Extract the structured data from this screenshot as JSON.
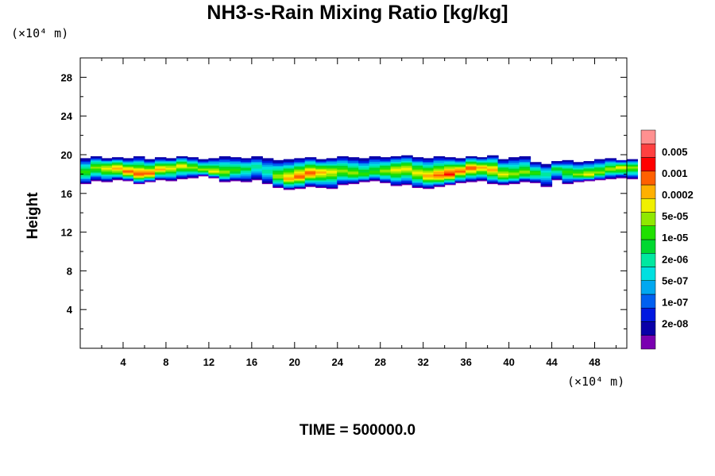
{
  "chart_data": {
    "type": "heatmap",
    "title": "NH3-s-Rain Mixing Ratio [kg/kg]",
    "ylabel": "Height",
    "xlabel": "",
    "x_unit": "(×10⁴ m)",
    "y_unit": "(×10⁴ m)",
    "xlim": [
      0,
      51
    ],
    "ylim": [
      0,
      30
    ],
    "x_ticks": [
      4,
      8,
      12,
      16,
      20,
      24,
      28,
      32,
      36,
      40,
      44,
      48
    ],
    "y_ticks": [
      4,
      8,
      12,
      16,
      20,
      24,
      28
    ],
    "grid": false,
    "colorbar": {
      "labels": [
        "0.005",
        "0.001",
        "0.0002",
        "5e-05",
        "1e-05",
        "2e-06",
        "5e-07",
        "1e-07",
        "2e-08"
      ],
      "colors": [
        "#7a00b0",
        "#0a00a8",
        "#0018e0",
        "#0060f0",
        "#00a8f0",
        "#00e0e0",
        "#00e8a0",
        "#00d830",
        "#20e000",
        "#90e800",
        "#f0f000",
        "#ffb000",
        "#ff6000",
        "#ff0000",
        "#ff4040",
        "#ff9090"
      ]
    },
    "field": {
      "base_height": [
        17.0,
        17.3,
        17.2,
        17.4,
        17.3,
        17.0,
        17.2,
        17.4,
        17.3,
        17.5,
        17.6,
        17.8,
        17.6,
        17.2,
        17.3,
        17.2,
        17.4,
        17.0,
        16.6,
        16.4,
        16.5,
        16.7,
        16.6,
        16.5,
        16.9,
        17.0,
        17.2,
        17.3,
        17.1,
        16.8,
        16.9,
        16.6,
        16.5,
        16.7,
        16.9,
        17.1,
        17.2,
        17.3,
        17.0,
        16.9,
        17.0,
        17.2,
        17.1,
        16.7,
        17.4,
        17.0,
        17.2,
        17.3,
        17.4,
        17.5,
        17.6,
        17.5
      ],
      "top_height": [
        19.6,
        19.8,
        19.6,
        19.7,
        19.6,
        19.8,
        19.5,
        19.7,
        19.6,
        19.8,
        19.7,
        19.5,
        19.6,
        19.8,
        19.7,
        19.6,
        19.8,
        19.6,
        19.4,
        19.5,
        19.6,
        19.7,
        19.5,
        19.6,
        19.8,
        19.7,
        19.6,
        19.8,
        19.7,
        19.8,
        19.9,
        19.7,
        19.6,
        19.8,
        19.7,
        19.6,
        19.8,
        19.7,
        19.9,
        19.5,
        19.7,
        19.8,
        19.2,
        19.0,
        19.3,
        19.4,
        19.2,
        19.3,
        19.5,
        19.6,
        19.4,
        19.5
      ],
      "peak_level": [
        8,
        9,
        10,
        11,
        12,
        12,
        12,
        11,
        10,
        10,
        9,
        9,
        10,
        9,
        8,
        7,
        6,
        6,
        9,
        11,
        12,
        12,
        11,
        10,
        9,
        9,
        8,
        8,
        9,
        10,
        10,
        10,
        11,
        12,
        13,
        12,
        12,
        11,
        11,
        10,
        9,
        9,
        8,
        6,
        7,
        8,
        9,
        10,
        9,
        9,
        10,
        9
      ]
    }
  }
}
